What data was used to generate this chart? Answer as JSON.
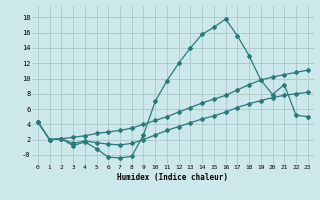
{
  "xlabel": "Humidex (Indice chaleur)",
  "bg_color": "#cce8ea",
  "grid_color": "#aac8cc",
  "line_color": "#2a7a7a",
  "xlim": [
    -0.5,
    23.5
  ],
  "ylim": [
    -1.2,
    19.5
  ],
  "x_ticks": [
    0,
    1,
    2,
    3,
    4,
    5,
    6,
    7,
    8,
    9,
    10,
    11,
    12,
    13,
    14,
    15,
    16,
    17,
    18,
    19,
    20,
    21,
    22,
    23
  ],
  "y_ticks": [
    0,
    2,
    4,
    6,
    8,
    10,
    12,
    14,
    16,
    18
  ],
  "y_tick_labels": [
    "-0",
    "2",
    "4",
    "6",
    "8",
    "10",
    "12",
    "14",
    "16",
    "18"
  ],
  "line1_x": [
    0,
    1,
    2,
    3,
    4,
    5,
    6,
    7,
    8,
    9,
    10,
    11,
    12,
    13,
    14,
    15,
    16,
    17,
    18,
    19,
    20,
    21,
    22,
    23
  ],
  "line1_y": [
    4.3,
    2.0,
    2.1,
    1.2,
    1.7,
    0.8,
    -0.3,
    -0.4,
    -0.2,
    2.6,
    7.0,
    9.7,
    12.0,
    14.0,
    15.8,
    16.7,
    17.8,
    15.6,
    13.0,
    9.8,
    7.9,
    9.2,
    5.2,
    5.0
  ],
  "line2_x": [
    0,
    1,
    2,
    3,
    4,
    5,
    6,
    7,
    8,
    9,
    10,
    11,
    12,
    13,
    14,
    15,
    16,
    17,
    18,
    19,
    20,
    21,
    22,
    23
  ],
  "line2_y": [
    4.3,
    2.0,
    2.1,
    2.3,
    2.5,
    2.8,
    3.0,
    3.2,
    3.5,
    4.0,
    4.5,
    5.0,
    5.6,
    6.2,
    6.8,
    7.3,
    7.8,
    8.5,
    9.2,
    9.8,
    10.2,
    10.5,
    10.8,
    11.1
  ],
  "line3_x": [
    0,
    1,
    2,
    3,
    4,
    5,
    6,
    7,
    8,
    9,
    10,
    11,
    12,
    13,
    14,
    15,
    16,
    17,
    18,
    19,
    20,
    21,
    22,
    23
  ],
  "line3_y": [
    4.3,
    2.0,
    2.1,
    1.5,
    1.8,
    1.6,
    1.4,
    1.3,
    1.5,
    2.0,
    2.6,
    3.2,
    3.7,
    4.2,
    4.7,
    5.1,
    5.6,
    6.2,
    6.7,
    7.1,
    7.5,
    7.8,
    8.0,
    8.2
  ]
}
